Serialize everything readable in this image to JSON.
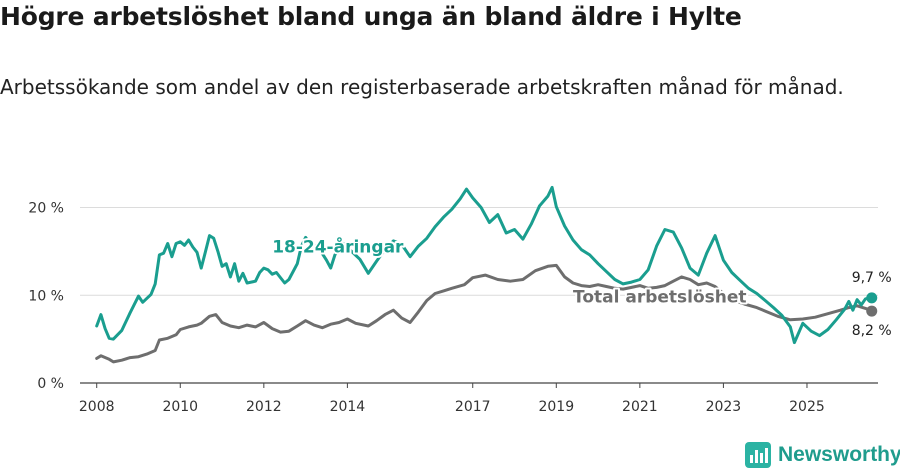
{
  "title": "Högre arbetslöshet bland unga än bland äldre i Hylte",
  "subtitle": "Arbetssökande som andel av den registerbaserade arbetskraften månad för månad.",
  "brand": {
    "name": "Newsworthy",
    "icon": "newsworthy-logo-icon"
  },
  "chart_data": {
    "type": "line",
    "title": "Högre arbetslöshet bland unga än bland äldre i Hylte",
    "subtitle": "Arbetssökande som andel av den registerbaserade arbetskraften månad för månad.",
    "xlabel": "",
    "ylabel": "",
    "xlim": [
      2007.6,
      2026.7
    ],
    "ylim": [
      0,
      22
    ],
    "grid": true,
    "x_ticks": [
      2008,
      2010,
      2012,
      2014,
      2017,
      2019,
      2021,
      2023,
      2025
    ],
    "x_tick_labels": [
      "2008",
      "2010",
      "2012",
      "2014",
      "2017",
      "2019",
      "2021",
      "2023",
      "2025"
    ],
    "y_ticks": [
      0,
      10,
      20
    ],
    "y_tick_labels": [
      "0 %",
      "10 %",
      "20 %"
    ],
    "series": [
      {
        "name": "Total arbetslöshet",
        "label": "Total arbetslöshet",
        "color": "#6e6e6e",
        "end_label": "8,2 %",
        "points": [
          [
            2008.0,
            2.8
          ],
          [
            2008.1,
            3.1
          ],
          [
            2008.3,
            2.7
          ],
          [
            2008.4,
            2.4
          ],
          [
            2008.6,
            2.6
          ],
          [
            2008.8,
            2.9
          ],
          [
            2009.0,
            3.0
          ],
          [
            2009.2,
            3.3
          ],
          [
            2009.4,
            3.7
          ],
          [
            2009.5,
            4.9
          ],
          [
            2009.7,
            5.1
          ],
          [
            2009.9,
            5.5
          ],
          [
            2010.0,
            6.1
          ],
          [
            2010.2,
            6.4
          ],
          [
            2010.4,
            6.6
          ],
          [
            2010.5,
            6.8
          ],
          [
            2010.7,
            7.6
          ],
          [
            2010.85,
            7.8
          ],
          [
            2011.0,
            6.9
          ],
          [
            2011.2,
            6.5
          ],
          [
            2011.4,
            6.3
          ],
          [
            2011.6,
            6.6
          ],
          [
            2011.8,
            6.4
          ],
          [
            2012.0,
            6.9
          ],
          [
            2012.2,
            6.2
          ],
          [
            2012.4,
            5.8
          ],
          [
            2012.6,
            5.9
          ],
          [
            2012.8,
            6.5
          ],
          [
            2013.0,
            7.1
          ],
          [
            2013.2,
            6.6
          ],
          [
            2013.4,
            6.3
          ],
          [
            2013.6,
            6.7
          ],
          [
            2013.8,
            6.9
          ],
          [
            2014.0,
            7.3
          ],
          [
            2014.2,
            6.8
          ],
          [
            2014.5,
            6.5
          ],
          [
            2014.7,
            7.1
          ],
          [
            2014.9,
            7.8
          ],
          [
            2015.1,
            8.3
          ],
          [
            2015.3,
            7.4
          ],
          [
            2015.5,
            6.9
          ],
          [
            2015.7,
            8.1
          ],
          [
            2015.9,
            9.4
          ],
          [
            2016.1,
            10.2
          ],
          [
            2016.3,
            10.5
          ],
          [
            2016.5,
            10.8
          ],
          [
            2016.8,
            11.2
          ],
          [
            2017.0,
            12.0
          ],
          [
            2017.3,
            12.3
          ],
          [
            2017.6,
            11.8
          ],
          [
            2017.9,
            11.6
          ],
          [
            2018.2,
            11.8
          ],
          [
            2018.5,
            12.8
          ],
          [
            2018.8,
            13.3
          ],
          [
            2019.0,
            13.4
          ],
          [
            2019.2,
            12.1
          ],
          [
            2019.4,
            11.4
          ],
          [
            2019.6,
            11.1
          ],
          [
            2019.8,
            11.0
          ],
          [
            2020.0,
            11.2
          ],
          [
            2020.2,
            11.0
          ],
          [
            2020.4,
            10.8
          ],
          [
            2020.6,
            10.7
          ],
          [
            2020.8,
            10.9
          ],
          [
            2021.0,
            11.1
          ],
          [
            2021.2,
            10.8
          ],
          [
            2021.4,
            10.9
          ],
          [
            2021.6,
            11.1
          ],
          [
            2021.8,
            11.6
          ],
          [
            2022.0,
            12.1
          ],
          [
            2022.2,
            11.8
          ],
          [
            2022.4,
            11.2
          ],
          [
            2022.6,
            11.4
          ],
          [
            2022.8,
            11.0
          ],
          [
            2023.0,
            10.2
          ],
          [
            2023.2,
            9.5
          ],
          [
            2023.5,
            9.0
          ],
          [
            2023.8,
            8.6
          ],
          [
            2024.0,
            8.2
          ],
          [
            2024.3,
            7.6
          ],
          [
            2024.6,
            7.2
          ],
          [
            2024.9,
            7.3
          ],
          [
            2025.2,
            7.5
          ],
          [
            2025.5,
            7.9
          ],
          [
            2025.8,
            8.3
          ],
          [
            2026.0,
            8.6
          ],
          [
            2026.2,
            8.8
          ],
          [
            2026.4,
            8.5
          ],
          [
            2026.55,
            8.2
          ]
        ]
      },
      {
        "name": "18-24-åringar",
        "label": "18-24-åringar",
        "color": "#1a9e8f",
        "end_label": "9,7 %",
        "points": [
          [
            2008.0,
            6.5
          ],
          [
            2008.1,
            7.8
          ],
          [
            2008.2,
            6.2
          ],
          [
            2008.3,
            5.1
          ],
          [
            2008.4,
            5.0
          ],
          [
            2008.6,
            6.0
          ],
          [
            2008.8,
            8.0
          ],
          [
            2009.0,
            9.9
          ],
          [
            2009.1,
            9.2
          ],
          [
            2009.3,
            10.1
          ],
          [
            2009.4,
            11.3
          ],
          [
            2009.5,
            14.6
          ],
          [
            2009.6,
            14.8
          ],
          [
            2009.7,
            15.9
          ],
          [
            2009.8,
            14.4
          ],
          [
            2009.9,
            15.9
          ],
          [
            2010.0,
            16.1
          ],
          [
            2010.1,
            15.7
          ],
          [
            2010.2,
            16.3
          ],
          [
            2010.3,
            15.5
          ],
          [
            2010.4,
            14.9
          ],
          [
            2010.5,
            13.1
          ],
          [
            2010.6,
            14.9
          ],
          [
            2010.7,
            16.8
          ],
          [
            2010.8,
            16.5
          ],
          [
            2010.9,
            15.0
          ],
          [
            2011.0,
            13.3
          ],
          [
            2011.1,
            13.6
          ],
          [
            2011.2,
            12.1
          ],
          [
            2011.3,
            13.6
          ],
          [
            2011.4,
            11.6
          ],
          [
            2011.5,
            12.5
          ],
          [
            2011.6,
            11.4
          ],
          [
            2011.8,
            11.6
          ],
          [
            2011.9,
            12.6
          ],
          [
            2012.0,
            13.1
          ],
          [
            2012.1,
            12.9
          ],
          [
            2012.2,
            12.4
          ],
          [
            2012.3,
            12.6
          ],
          [
            2012.5,
            11.4
          ],
          [
            2012.6,
            11.8
          ],
          [
            2012.8,
            13.6
          ],
          [
            2012.9,
            15.6
          ],
          [
            2013.0,
            16.6
          ],
          [
            2013.1,
            15.9
          ],
          [
            2013.3,
            15.5
          ],
          [
            2013.5,
            14.0
          ],
          [
            2013.6,
            13.1
          ],
          [
            2013.7,
            14.6
          ],
          [
            2013.9,
            15.9
          ],
          [
            2014.1,
            15.0
          ],
          [
            2014.3,
            14.1
          ],
          [
            2014.5,
            12.5
          ],
          [
            2014.7,
            13.9
          ],
          [
            2014.9,
            15.2
          ],
          [
            2015.1,
            16.2
          ],
          [
            2015.3,
            15.8
          ],
          [
            2015.5,
            14.4
          ],
          [
            2015.7,
            15.6
          ],
          [
            2015.9,
            16.5
          ],
          [
            2016.1,
            17.8
          ],
          [
            2016.3,
            18.9
          ],
          [
            2016.5,
            19.8
          ],
          [
            2016.7,
            21.0
          ],
          [
            2016.85,
            22.1
          ],
          [
            2017.0,
            21.1
          ],
          [
            2017.2,
            20.0
          ],
          [
            2017.4,
            18.3
          ],
          [
            2017.6,
            19.2
          ],
          [
            2017.8,
            17.1
          ],
          [
            2018.0,
            17.5
          ],
          [
            2018.2,
            16.4
          ],
          [
            2018.4,
            18.1
          ],
          [
            2018.6,
            20.2
          ],
          [
            2018.8,
            21.3
          ],
          [
            2018.9,
            22.3
          ],
          [
            2019.0,
            20.1
          ],
          [
            2019.2,
            17.9
          ],
          [
            2019.4,
            16.3
          ],
          [
            2019.6,
            15.2
          ],
          [
            2019.8,
            14.6
          ],
          [
            2020.0,
            13.6
          ],
          [
            2020.2,
            12.7
          ],
          [
            2020.4,
            11.8
          ],
          [
            2020.6,
            11.3
          ],
          [
            2020.8,
            11.5
          ],
          [
            2021.0,
            11.8
          ],
          [
            2021.2,
            12.9
          ],
          [
            2021.4,
            15.6
          ],
          [
            2021.6,
            17.5
          ],
          [
            2021.8,
            17.2
          ],
          [
            2022.0,
            15.4
          ],
          [
            2022.2,
            13.1
          ],
          [
            2022.4,
            12.3
          ],
          [
            2022.6,
            14.8
          ],
          [
            2022.8,
            16.8
          ],
          [
            2023.0,
            14.0
          ],
          [
            2023.2,
            12.6
          ],
          [
            2023.4,
            11.7
          ],
          [
            2023.6,
            10.8
          ],
          [
            2023.8,
            10.2
          ],
          [
            2024.0,
            9.4
          ],
          [
            2024.2,
            8.6
          ],
          [
            2024.4,
            7.7
          ],
          [
            2024.6,
            6.4
          ],
          [
            2024.7,
            4.6
          ],
          [
            2024.9,
            6.8
          ],
          [
            2025.1,
            5.9
          ],
          [
            2025.3,
            5.4
          ],
          [
            2025.5,
            6.1
          ],
          [
            2025.7,
            7.2
          ],
          [
            2025.9,
            8.4
          ],
          [
            2026.0,
            9.3
          ],
          [
            2026.1,
            8.3
          ],
          [
            2026.2,
            9.5
          ],
          [
            2026.3,
            8.9
          ],
          [
            2026.4,
            9.6
          ],
          [
            2026.55,
            9.7
          ]
        ]
      }
    ]
  }
}
